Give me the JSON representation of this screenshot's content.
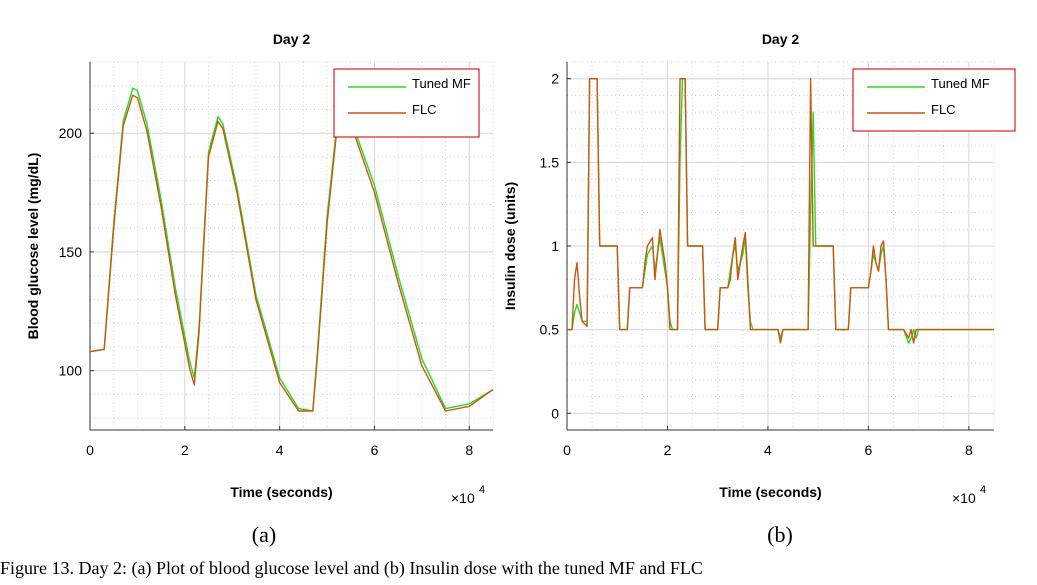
{
  "chart_data": [
    {
      "type": "line",
      "title": "Day 2",
      "xlabel": "Time (seconds)",
      "ylabel": "Blood glucose level (mg/dL)",
      "x_exponent_label": "×10",
      "x_exponent": "4",
      "xlim": [
        0,
        8.5
      ],
      "ylim": [
        75,
        230
      ],
      "xticks": [
        0,
        2,
        4,
        6,
        8
      ],
      "yticks": [
        100,
        150,
        200
      ],
      "grid": true,
      "legend": "top-right",
      "subfigure_label": "(a)",
      "series": [
        {
          "name": "Tuned MF",
          "color": "#22dd22",
          "x": [
            0,
            0.3,
            0.5,
            0.7,
            0.9,
            1.0,
            1.2,
            1.5,
            1.8,
            2.1,
            2.2,
            2.3,
            2.5,
            2.7,
            2.8,
            3.1,
            3.5,
            4.0,
            4.4,
            4.7,
            4.8,
            5.0,
            5.2,
            5.35,
            5.5,
            6.0,
            6.5,
            7.0,
            7.5,
            8.0,
            8.5
          ],
          "y": [
            108,
            109,
            162,
            205,
            219,
            218,
            204,
            172,
            135,
            104,
            97,
            118,
            192,
            207,
            204,
            177,
            132,
            97,
            84,
            83,
            109,
            165,
            202,
            208,
            206,
            178,
            140,
            105,
            84,
            86,
            92
          ]
        },
        {
          "name": "FLC",
          "color": "#cc5511",
          "x": [
            0,
            0.3,
            0.5,
            0.7,
            0.9,
            1.0,
            1.2,
            1.5,
            1.8,
            2.1,
            2.2,
            2.3,
            2.5,
            2.7,
            2.8,
            3.1,
            3.5,
            4.0,
            4.4,
            4.7,
            4.8,
            5.0,
            5.2,
            5.35,
            5.5,
            6.0,
            6.5,
            7.0,
            7.5,
            8.0,
            8.5
          ],
          "y": [
            108,
            109,
            160,
            203,
            216,
            215,
            201,
            169,
            132,
            101,
            94,
            116,
            190,
            205,
            202,
            175,
            130,
            95,
            83,
            83,
            107,
            162,
            200,
            206,
            204,
            175,
            137,
            102,
            83,
            85,
            92
          ]
        }
      ]
    },
    {
      "type": "line",
      "title": "Day 2",
      "xlabel": "Time (seconds)",
      "ylabel": "Insulin dose (units)",
      "x_exponent_label": "×10",
      "x_exponent": "4",
      "xlim": [
        0,
        8.5
      ],
      "ylim": [
        -0.1,
        2.1
      ],
      "xticks": [
        0,
        2,
        4,
        6,
        8
      ],
      "yticks": [
        0,
        0.5,
        1,
        1.5,
        2
      ],
      "grid": true,
      "legend": "top-right",
      "subfigure_label": "(b)",
      "series": [
        {
          "name": "Tuned MF",
          "color": "#22dd22",
          "x": [
            0,
            0.1,
            0.15,
            0.2,
            0.25,
            0.3,
            0.4,
            0.45,
            0.5,
            0.6,
            0.65,
            0.7,
            1.0,
            1.05,
            1.2,
            1.25,
            1.5,
            1.55,
            1.6,
            1.7,
            1.75,
            1.8,
            1.85,
            1.9,
            1.95,
            2.0,
            2.05,
            2.1,
            2.2,
            2.25,
            2.3,
            2.35,
            2.4,
            2.45,
            2.7,
            2.75,
            3.0,
            3.05,
            3.2,
            3.25,
            3.3,
            3.35,
            3.4,
            3.5,
            3.55,
            3.6,
            3.65,
            3.7,
            3.75,
            4.2,
            4.25,
            4.3,
            4.35,
            4.8,
            4.85,
            4.9,
            4.95,
            5.3,
            5.35,
            5.6,
            5.65,
            6.0,
            6.05,
            6.1,
            6.15,
            6.2,
            6.25,
            6.3,
            6.35,
            6.4,
            6.45,
            6.6,
            6.7,
            6.8,
            6.85,
            6.9,
            6.95,
            7.0,
            8.5
          ],
          "y": [
            0.5,
            0.5,
            0.6,
            0.65,
            0.6,
            0.55,
            0.55,
            2.0,
            2.0,
            2.0,
            1.0,
            1.0,
            1.0,
            0.5,
            0.5,
            0.75,
            0.75,
            0.85,
            0.95,
            1.0,
            0.85,
            0.95,
            1.05,
            0.95,
            0.85,
            0.75,
            0.55,
            0.5,
            0.5,
            1.5,
            2.0,
            2.0,
            1.0,
            1.0,
            1.0,
            0.5,
            0.5,
            0.75,
            0.75,
            0.85,
            0.95,
            1.0,
            0.85,
            0.95,
            1.05,
            0.75,
            0.55,
            0.5,
            0.5,
            0.5,
            0.45,
            0.5,
            0.5,
            0.5,
            1.2,
            1.8,
            1.0,
            1.0,
            0.5,
            0.5,
            0.75,
            0.75,
            0.85,
            0.95,
            0.9,
            0.85,
            0.95,
            1.0,
            0.8,
            0.5,
            0.5,
            0.5,
            0.5,
            0.42,
            0.45,
            0.5,
            0.45,
            0.5,
            0.5
          ]
        },
        {
          "name": "FLC",
          "color": "#cc5511",
          "x": [
            0,
            0.1,
            0.15,
            0.2,
            0.25,
            0.3,
            0.4,
            0.45,
            0.5,
            0.6,
            0.65,
            0.7,
            1.0,
            1.05,
            1.2,
            1.25,
            1.5,
            1.55,
            1.6,
            1.7,
            1.75,
            1.8,
            1.85,
            1.9,
            1.95,
            2.0,
            2.05,
            2.1,
            2.2,
            2.25,
            2.3,
            2.35,
            2.4,
            2.45,
            2.7,
            2.75,
            3.0,
            3.05,
            3.2,
            3.25,
            3.3,
            3.35,
            3.4,
            3.5,
            3.55,
            3.6,
            3.65,
            3.7,
            3.75,
            4.2,
            4.25,
            4.3,
            4.35,
            4.8,
            4.85,
            4.9,
            4.95,
            5.3,
            5.35,
            5.6,
            5.65,
            6.0,
            6.05,
            6.1,
            6.15,
            6.2,
            6.25,
            6.3,
            6.35,
            6.4,
            6.45,
            6.6,
            6.7,
            6.8,
            6.85,
            6.9,
            6.95,
            7.0,
            8.5
          ],
          "y": [
            0.5,
            0.5,
            0.8,
            0.9,
            0.7,
            0.55,
            0.52,
            2.0,
            2.0,
            2.0,
            1.0,
            1.0,
            1.0,
            0.5,
            0.5,
            0.75,
            0.75,
            0.9,
            1.0,
            1.05,
            0.8,
            0.95,
            1.1,
            1.0,
            0.9,
            0.75,
            0.5,
            0.5,
            0.5,
            2.0,
            2.0,
            2.0,
            1.0,
            1.0,
            1.0,
            0.5,
            0.5,
            0.75,
            0.75,
            0.8,
            0.95,
            1.05,
            0.8,
            1.0,
            1.08,
            0.8,
            0.5,
            0.5,
            0.5,
            0.5,
            0.42,
            0.5,
            0.5,
            0.5,
            2.0,
            1.0,
            1.0,
            1.0,
            0.5,
            0.5,
            0.75,
            0.75,
            0.85,
            1.0,
            0.9,
            0.85,
            1.0,
            1.03,
            0.8,
            0.5,
            0.5,
            0.5,
            0.5,
            0.45,
            0.5,
            0.42,
            0.5,
            0.5,
            0.5
          ]
        }
      ]
    }
  ],
  "caption": "Figure 13. Day 2: (a) Plot of blood glucose level and (b) Insulin dose with the tuned MF and FLC"
}
